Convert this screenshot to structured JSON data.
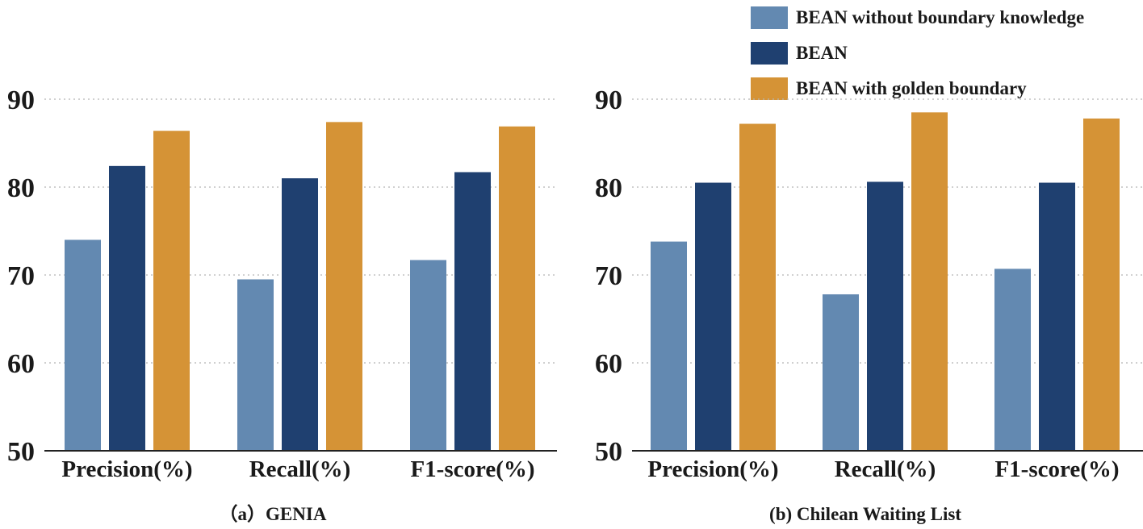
{
  "legend": {
    "items": [
      {
        "label": "BEAN without boundary knowledge",
        "color": "#6389b1"
      },
      {
        "label": "BEAN",
        "color": "#1f4070"
      },
      {
        "label": "BEAN with golden boundary",
        "color": "#d59336"
      }
    ]
  },
  "chart_data": [
    {
      "type": "bar",
      "title": "（a）GENIA",
      "categories": [
        "Precision(%)",
        "Recall(%)",
        "F1-score(%)"
      ],
      "series": [
        {
          "name": "BEAN without boundary knowledge",
          "values": [
            74.0,
            69.5,
            71.7
          ]
        },
        {
          "name": "BEAN",
          "values": [
            82.4,
            81.0,
            81.7
          ]
        },
        {
          "name": "BEAN with golden boundary",
          "values": [
            86.4,
            87.4,
            86.9
          ]
        }
      ],
      "ylim": [
        50,
        90
      ],
      "yticks": [
        50,
        60,
        70,
        80,
        90
      ],
      "xlabel": "",
      "ylabel": "",
      "grid": "horizontal dotted"
    },
    {
      "type": "bar",
      "title": "(b) Chilean Waiting List",
      "categories": [
        "Precision(%)",
        "Recall(%)",
        "F1-score(%)"
      ],
      "series": [
        {
          "name": "BEAN without boundary knowledge",
          "values": [
            73.8,
            67.8,
            70.7
          ]
        },
        {
          "name": "BEAN",
          "values": [
            80.5,
            80.6,
            80.5
          ]
        },
        {
          "name": "BEAN with golden boundary",
          "values": [
            87.2,
            88.5,
            87.8
          ]
        }
      ],
      "ylim": [
        50,
        90
      ],
      "yticks": [
        50,
        60,
        70,
        80,
        90
      ],
      "xlabel": "",
      "ylabel": "",
      "grid": "horizontal dotted"
    }
  ]
}
